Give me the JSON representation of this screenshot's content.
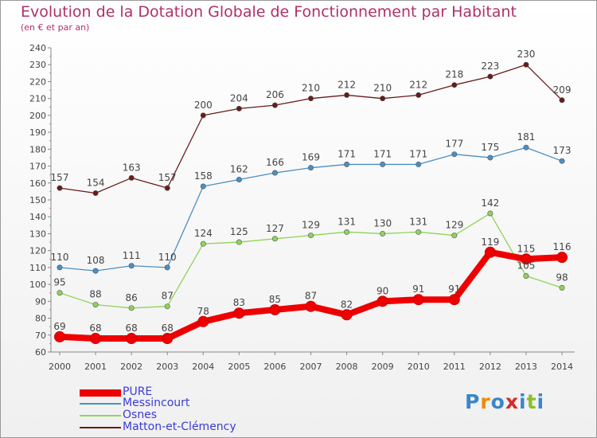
{
  "chart_data": {
    "type": "line",
    "title": "Evolution de la Dotation Globale de Fonctionnement par Habitant",
    "subtitle": "(en € et par an)",
    "xlabel": "",
    "ylabel": "",
    "ylim": [
      60,
      240
    ],
    "ytick_step": 10,
    "grid": false,
    "legend_position": "bottom-left",
    "categories": [
      "2000",
      "2001",
      "2002",
      "2003",
      "2004",
      "2005",
      "2006",
      "2007",
      "2008",
      "2009",
      "2010",
      "2011",
      "2012",
      "2013",
      "2014"
    ],
    "yticks": [
      "60",
      "70",
      "80",
      "90",
      "100",
      "110",
      "120",
      "130",
      "140",
      "150",
      "160",
      "170",
      "180",
      "190",
      "200",
      "210",
      "220",
      "230",
      "240"
    ],
    "series": [
      {
        "name": "PURE",
        "color": "#ee0000",
        "values": [
          69,
          68,
          68,
          68,
          78,
          83,
          85,
          87,
          82,
          90,
          91,
          91,
          119,
          115,
          116
        ]
      },
      {
        "name": "Messincourt",
        "color": "#4a8fc4",
        "values": [
          110,
          108,
          111,
          110,
          158,
          162,
          166,
          169,
          171,
          171,
          171,
          177,
          175,
          181,
          173
        ]
      },
      {
        "name": "Osnes",
        "color": "#8ed45a",
        "values": [
          95,
          88,
          86,
          87,
          124,
          125,
          127,
          129,
          131,
          130,
          131,
          129,
          142,
          105,
          98
        ]
      },
      {
        "name": "Matton-et-Clémency",
        "color": "#6b1a1a",
        "values": [
          157,
          154,
          163,
          157,
          200,
          204,
          206,
          210,
          212,
          210,
          212,
          218,
          223,
          230,
          209
        ]
      }
    ]
  },
  "logo": {
    "text": "Proxiti",
    "letters": [
      "P",
      "r",
      "o",
      "x",
      "i",
      "t",
      "i"
    ],
    "colors": [
      "#3a86c8",
      "#f08a00",
      "#3a86c8",
      "#d42a2a",
      "#3a86c8",
      "#8bbf2a",
      "#3a86c8"
    ]
  },
  "colors": {
    "title": "#b0306a",
    "axis": "#888888",
    "label": "#444444"
  }
}
